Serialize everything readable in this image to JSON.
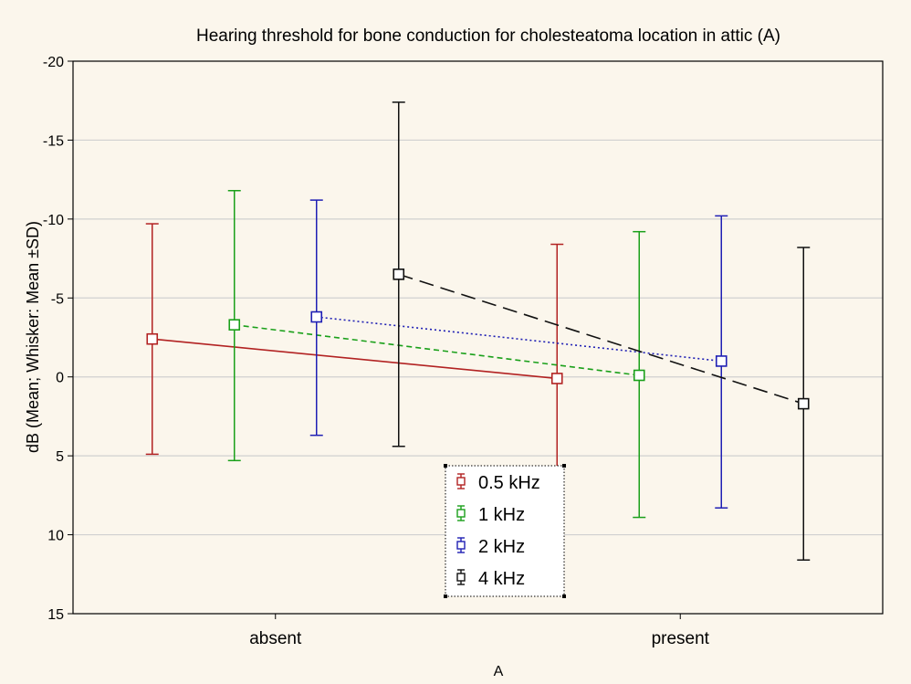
{
  "chart_data": {
    "type": "line",
    "title": "Hearing threshold for bone conduction for cholesteatoma location in attic (A)",
    "xlabel": "A",
    "ylabel": "dB (Mean; Whisker: Mean ±SD)",
    "categories": [
      "absent",
      "present"
    ],
    "y_inverted": true,
    "ylim": [
      -20,
      15
    ],
    "yticks": [
      -20,
      -15,
      -10,
      -5,
      0,
      5,
      10,
      15
    ],
    "grid": "horizontal",
    "legend_position": "bottom-center",
    "series": [
      {
        "name": "0.5 kHz",
        "color": "#b22222",
        "line_style": "solid",
        "mean": [
          -2.4,
          0.1
        ],
        "sd_low": [
          -9.7,
          -8.4
        ],
        "sd_high": [
          4.9,
          8.7
        ]
      },
      {
        "name": "1 kHz",
        "color": "#1aa01a",
        "line_style": "dashed",
        "mean": [
          -3.3,
          -0.1
        ],
        "sd_low": [
          -11.8,
          -9.2
        ],
        "sd_high": [
          5.3,
          8.9
        ]
      },
      {
        "name": "2 kHz",
        "color": "#1f1fb4",
        "line_style": "dotted",
        "mean": [
          -3.8,
          -1.0
        ],
        "sd_low": [
          -11.2,
          -10.2
        ],
        "sd_high": [
          3.7,
          8.3
        ]
      },
      {
        "name": "4 kHz",
        "color": "#111111",
        "line_style": "longdash",
        "mean": [
          -6.5,
          1.7
        ],
        "sd_low": [
          -17.4,
          -8.2
        ],
        "sd_high": [
          4.4,
          11.6
        ]
      }
    ]
  }
}
